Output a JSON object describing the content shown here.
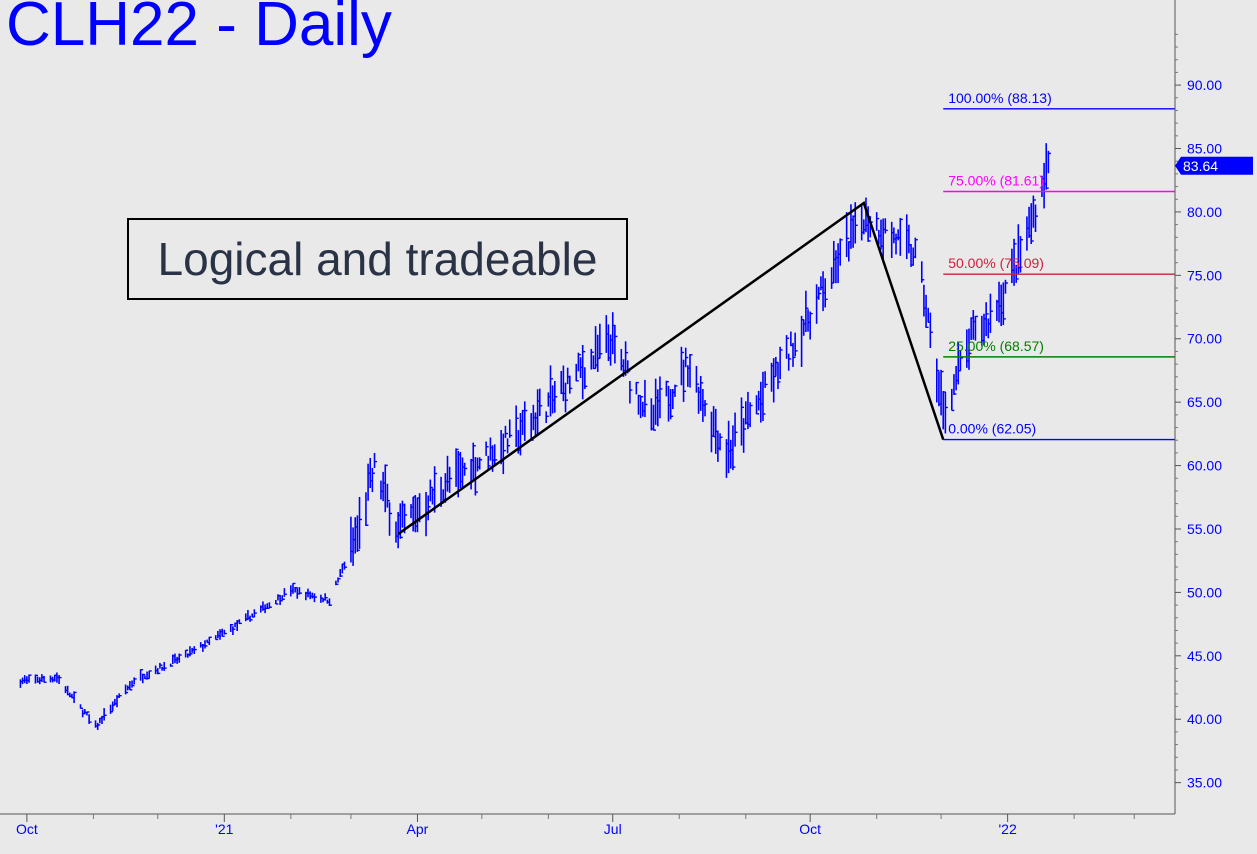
{
  "title": "CLH22 - Daily",
  "annotation": "Logical and tradeable",
  "colors": {
    "background": "#e9e9e9",
    "price_bars": "#0000ff",
    "swing_lines": "#000000",
    "axis_text": "#0000ff"
  },
  "chart_data": {
    "type": "bar",
    "title": "CLH22 - Daily",
    "ylim": [
      33,
      96
    ],
    "y_ticks": [
      "35.00",
      "40.00",
      "45.00",
      "50.00",
      "55.00",
      "60.00",
      "65.00",
      "70.00",
      "75.00",
      "80.00",
      "85.00",
      "90.00"
    ],
    "x_tick_labels": [
      "Oct",
      "'21",
      "Apr",
      "Jul",
      "Oct",
      "'22"
    ],
    "x_range": [
      "2020-09-25",
      "2022-03-20"
    ],
    "last_price": "83.64",
    "fib_levels": [
      {
        "label": "100.00% (88.13)",
        "value": 88.13,
        "color": "#0000ff"
      },
      {
        "label": "75.00% (81.61)",
        "value": 81.61,
        "color": "#ff00ff"
      },
      {
        "label": "50.00% (75.09)",
        "value": 75.09,
        "color": "#d0203c"
      },
      {
        "label": "25.00% (68.57)",
        "value": 68.57,
        "color": "#008000"
      },
      {
        "label": "0.00% (62.05)",
        "value": 62.05,
        "color": "#0000ff"
      }
    ],
    "swing_points": [
      {
        "date": "2021-03-23",
        "price": 54.6
      },
      {
        "date": "2021-10-26",
        "price": 80.7
      },
      {
        "date": "2021-12-02",
        "price": 62.05
      }
    ],
    "price_anchors": [
      {
        "date": "2020-09-28",
        "price": 43.0
      },
      {
        "date": "2020-10-15",
        "price": 43.3
      },
      {
        "date": "2020-11-02",
        "price": 39.4
      },
      {
        "date": "2020-11-20",
        "price": 43.1
      },
      {
        "date": "2020-12-14",
        "price": 45.0
      },
      {
        "date": "2021-01-06",
        "price": 47.3
      },
      {
        "date": "2021-02-01",
        "price": 50.2
      },
      {
        "date": "2021-02-19",
        "price": 49.4
      },
      {
        "date": "2021-03-05",
        "price": 55.0
      },
      {
        "date": "2021-03-12",
        "price": 59.8
      },
      {
        "date": "2021-03-23",
        "price": 55.0
      },
      {
        "date": "2021-04-14",
        "price": 58.5
      },
      {
        "date": "2021-05-18",
        "price": 62.5
      },
      {
        "date": "2021-06-30",
        "price": 69.8
      },
      {
        "date": "2021-07-19",
        "price": 63.5
      },
      {
        "date": "2021-08-05",
        "price": 68.0
      },
      {
        "date": "2021-08-23",
        "price": 61.0
      },
      {
        "date": "2021-09-20",
        "price": 68.5
      },
      {
        "date": "2021-10-26",
        "price": 79.8
      },
      {
        "date": "2021-11-20",
        "price": 76.5
      },
      {
        "date": "2021-12-02",
        "price": 64.0
      },
      {
        "date": "2021-12-15",
        "price": 70.0
      },
      {
        "date": "2021-12-24",
        "price": 71.5
      },
      {
        "date": "2022-01-07",
        "price": 76.5
      },
      {
        "date": "2022-01-20",
        "price": 83.6
      }
    ]
  }
}
